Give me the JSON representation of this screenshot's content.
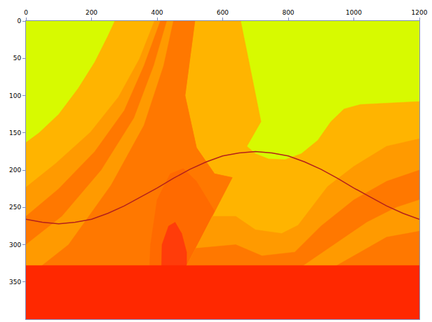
{
  "chart_data": {
    "type": "polygon",
    "xlim": [
      0,
      1200
    ],
    "ylim": [
      400,
      0
    ],
    "xticks": [
      0,
      200,
      400,
      600,
      800,
      1000,
      1200
    ],
    "yticks": [
      0,
      50,
      100,
      150,
      200,
      250,
      300,
      350
    ],
    "grid": false,
    "regions": [
      {
        "color": "#d7fa00",
        "x": [
          0,
          1200,
          1200,
          0
        ],
        "y": [
          0,
          0,
          400,
          400
        ]
      },
      {
        "color": "#ffb400",
        "x": [
          0,
          40,
          100,
          160,
          210,
          250,
          271,
          655,
          685,
          717,
          674,
          700,
          740,
          790,
          840,
          890,
          930,
          970,
          1020,
          1100,
          1200,
          1200,
          0
        ],
        "y": [
          163,
          150,
          125,
          90,
          55,
          20,
          0,
          0,
          65,
          135,
          168,
          178,
          185,
          186,
          178,
          160,
          135,
          118,
          112,
          110,
          108,
          400,
          400
        ]
      },
      {
        "color": "#ff9a00",
        "x": [
          0,
          91,
          197,
          282,
          346,
          392,
          515,
          485,
          520,
          575,
          629,
          490,
          490,
          0
        ],
        "y": [
          223,
          191,
          149,
          102,
          51,
          0,
          0,
          100,
          170,
          205,
          210,
          328,
          400,
          400
        ]
      },
      {
        "color": "#ff7800",
        "x": [
          0,
          100,
          210,
          300,
          360,
          410,
          515,
          485,
          520,
          575,
          629,
          490,
          490,
          0
        ],
        "y": [
          262,
          225,
          175,
          120,
          60,
          0,
          0,
          100,
          170,
          205,
          210,
          328,
          400,
          400
        ]
      },
      {
        "color": "#ff9a00",
        "x": [
          0,
          110,
          230,
          330,
          390,
          430,
          515,
          485,
          520,
          575,
          629,
          490,
          490,
          0
        ],
        "y": [
          300,
          262,
          200,
          130,
          60,
          0,
          0,
          100,
          170,
          205,
          210,
          328,
          400,
          400
        ]
      },
      {
        "color": "#ff7800",
        "x": [
          0,
          130,
          260,
          360,
          420,
          450,
          515,
          485,
          520,
          575,
          629,
          490,
          490,
          0
        ],
        "y": [
          345,
          300,
          220,
          140,
          60,
          0,
          0,
          100,
          170,
          205,
          210,
          328,
          400,
          400
        ]
      },
      {
        "color": "#ff6a00",
        "x": [
          370,
          380,
          400,
          440,
          480,
          520,
          575,
          490,
          490
        ],
        "y": [
          400,
          300,
          240,
          205,
          198,
          215,
          255,
          328,
          400
        ]
      },
      {
        "color": "#ff3c0a",
        "x": [
          410,
          415,
          435,
          455,
          475,
          490,
          490
        ],
        "y": [
          400,
          300,
          275,
          270,
          285,
          310,
          400
        ]
      },
      {
        "color": "#ff9a00",
        "x": [
          568,
          640,
          700,
          780,
          830,
          920,
          1000,
          1100,
          1200,
          1200,
          490,
          490
        ],
        "y": [
          262,
          262,
          280,
          285,
          274,
          222,
          195,
          168,
          158,
          400,
          400,
          328
        ]
      },
      {
        "color": "#ff7800",
        "x": [
          517,
          640,
          720,
          820,
          900,
          1000,
          1100,
          1200,
          1200,
          490,
          490
        ],
        "y": [
          305,
          300,
          315,
          310,
          275,
          240,
          215,
          200,
          400,
          400,
          328
        ]
      },
      {
        "color": "#ff9a00",
        "x": [
          490,
          640,
          740,
          840,
          940,
          1040,
          1130,
          1200,
          1200,
          490
        ],
        "y": [
          328,
          330,
          340,
          330,
          300,
          270,
          250,
          240,
          400,
          400
        ]
      },
      {
        "color": "#ff7800",
        "x": [
          940,
          1020,
          1100,
          1200,
          1200,
          940
        ],
        "y": [
          330,
          310,
          290,
          282,
          400,
          400
        ]
      },
      {
        "color": "#ff2800",
        "x": [
          0,
          1200,
          1200,
          0
        ],
        "y": [
          328,
          328,
          400,
          400
        ]
      }
    ],
    "series": [
      {
        "color": "#b3201c",
        "type": "line",
        "x": [
          0,
          50,
          100,
          150,
          200,
          250,
          300,
          350,
          400,
          450,
          500,
          550,
          600,
          650,
          700,
          750,
          800,
          850,
          900,
          950,
          1000,
          1050,
          1100,
          1150,
          1200
        ],
        "values": [
          266,
          270,
          272,
          270,
          266,
          258,
          248,
          236,
          224,
          211,
          199,
          189,
          181,
          177,
          175,
          177,
          181,
          189,
          199,
          211,
          224,
          236,
          248,
          258,
          266
        ]
      }
    ]
  }
}
